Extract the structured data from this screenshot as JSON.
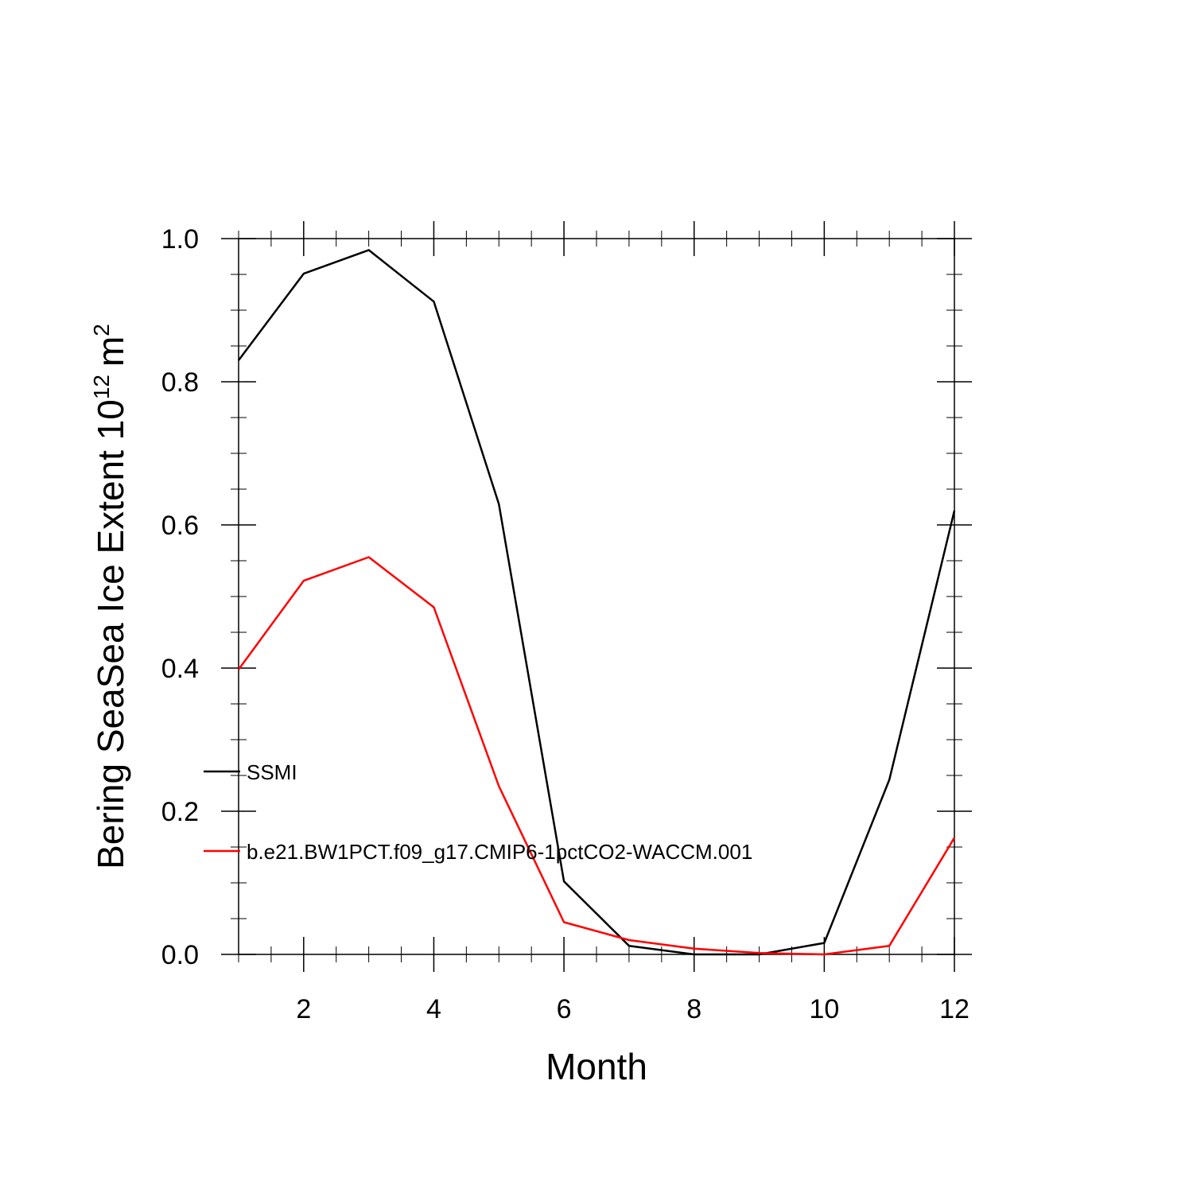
{
  "chart_data": {
    "type": "line",
    "title": "",
    "xlabel": "Month",
    "ylabel": {
      "main": "Bering SeaSea Ice Extent 10",
      "exponent": "12",
      "unit": "m",
      "unit_exponent": "2"
    },
    "xlim": [
      1,
      12
    ],
    "ylim": [
      0,
      1
    ],
    "x": [
      1,
      2,
      3,
      4,
      5,
      6,
      7,
      8,
      9,
      10,
      11,
      12
    ],
    "x_ticks": [
      2,
      4,
      6,
      8,
      10,
      12
    ],
    "x_tick_labels": [
      "2",
      "4",
      "6",
      "8",
      "10",
      "12"
    ],
    "y_ticks": [
      0,
      0.2,
      0.4,
      0.6,
      0.8,
      1.0
    ],
    "y_tick_labels": [
      "0.0",
      "0.2",
      "0.4",
      "0.6",
      "0.8",
      "1.0"
    ],
    "grid": false,
    "legend_position": "left-middle",
    "series": [
      {
        "name": "SSMI",
        "color": "#000000",
        "values": [
          0.83,
          0.951,
          0.984,
          0.912,
          0.629,
          0.102,
          0.012,
          0.0,
          0.0,
          0.016,
          0.244,
          0.62
        ]
      },
      {
        "name": "b.e21.BW1PCT.f09_g17.CMIP6-1pctCO2-WACCM.001",
        "color": "#ff0000",
        "values": [
          0.398,
          0.522,
          0.555,
          0.485,
          0.235,
          0.045,
          0.02,
          0.008,
          0.002,
          0.0,
          0.012,
          0.163
        ]
      }
    ]
  }
}
